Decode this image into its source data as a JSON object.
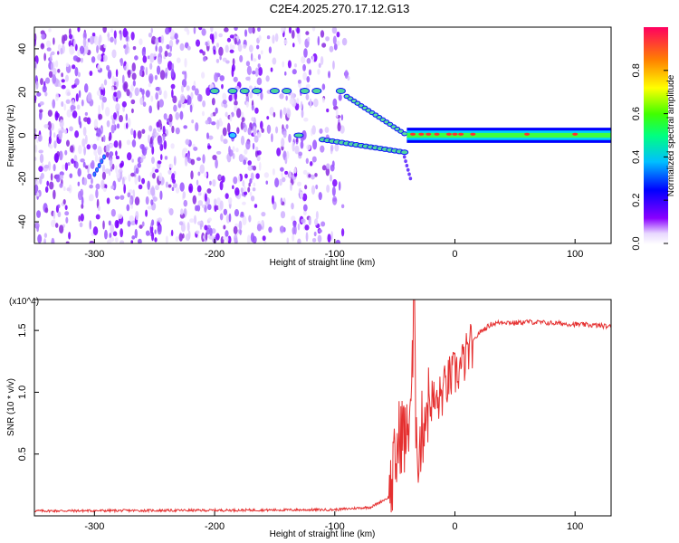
{
  "title": "C2E4.2025.270.17.12.G13",
  "chart_data": [
    {
      "type": "heatmap",
      "xlabel": "Height of straight line (km)",
      "ylabel": "Frequency (Hz)",
      "xlim": [
        -350,
        130
      ],
      "ylim": [
        -50,
        50
      ],
      "xticks": [
        -300,
        -200,
        -100,
        0,
        100
      ],
      "yticks": [
        -40,
        -20,
        0,
        20,
        40
      ],
      "colorbar": {
        "label": "Normalized spectral amplitude",
        "range": [
          0,
          1
        ],
        "ticks": [
          "0.0",
          "0.2",
          "0.4",
          "0.6",
          "0.8"
        ]
      },
      "features": [
        {
          "x": [
            -200,
            -90
          ],
          "y": 20,
          "note": "line near +20 Hz"
        },
        {
          "x": [
            -90,
            -40
          ],
          "y": [
            18,
            0
          ],
          "note": "converging branch"
        },
        {
          "x": [
            -190,
            -40
          ],
          "y": [
            0,
            -8
          ],
          "note": "lower branch"
        },
        {
          "x": [
            -40,
            130
          ],
          "y": 0,
          "note": "strong carrier near 0 Hz"
        }
      ]
    },
    {
      "type": "line",
      "xlabel": "Height of straight line (km)",
      "ylabel": "SNR (10 * v/v)",
      "y_multiplier": "(x10^4)",
      "xlim": [
        -350,
        130
      ],
      "ylim": [
        0,
        1.75
      ],
      "xticks": [
        -300,
        -200,
        -100,
        0,
        100
      ],
      "yticks": [
        "0.5",
        "1.0",
        "1.5"
      ],
      "color": "#e53030",
      "series": [
        {
          "x": [
            -350,
            -200,
            -100,
            -70,
            -55,
            -50,
            -45,
            -40,
            -35,
            -30,
            -25,
            -20,
            -15,
            -10,
            -5,
            0,
            5,
            10,
            15,
            20,
            30,
            40,
            50,
            60,
            80,
            100,
            120,
            130
          ],
          "y": [
            0.04,
            0.045,
            0.05,
            0.07,
            0.15,
            0.4,
            0.7,
            0.6,
            1.2,
            0.5,
            0.85,
            0.95,
            0.9,
            1.0,
            1.1,
            1.15,
            1.2,
            1.3,
            1.4,
            1.48,
            1.55,
            1.57,
            1.56,
            1.57,
            1.56,
            1.55,
            1.54,
            1.53
          ]
        }
      ]
    }
  ]
}
